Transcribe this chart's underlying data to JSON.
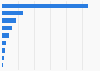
{
  "values": [
    27000,
    6500,
    4500,
    3200,
    2200,
    1400,
    900,
    600,
    300
  ],
  "bar_color": "#2a7de1",
  "background_color": "#f9f9f9",
  "grid_color": "#dddddd",
  "xlim": [
    0,
    30000
  ],
  "bar_height": 0.6,
  "figsize": [
    1.0,
    0.71
  ],
  "dpi": 100
}
